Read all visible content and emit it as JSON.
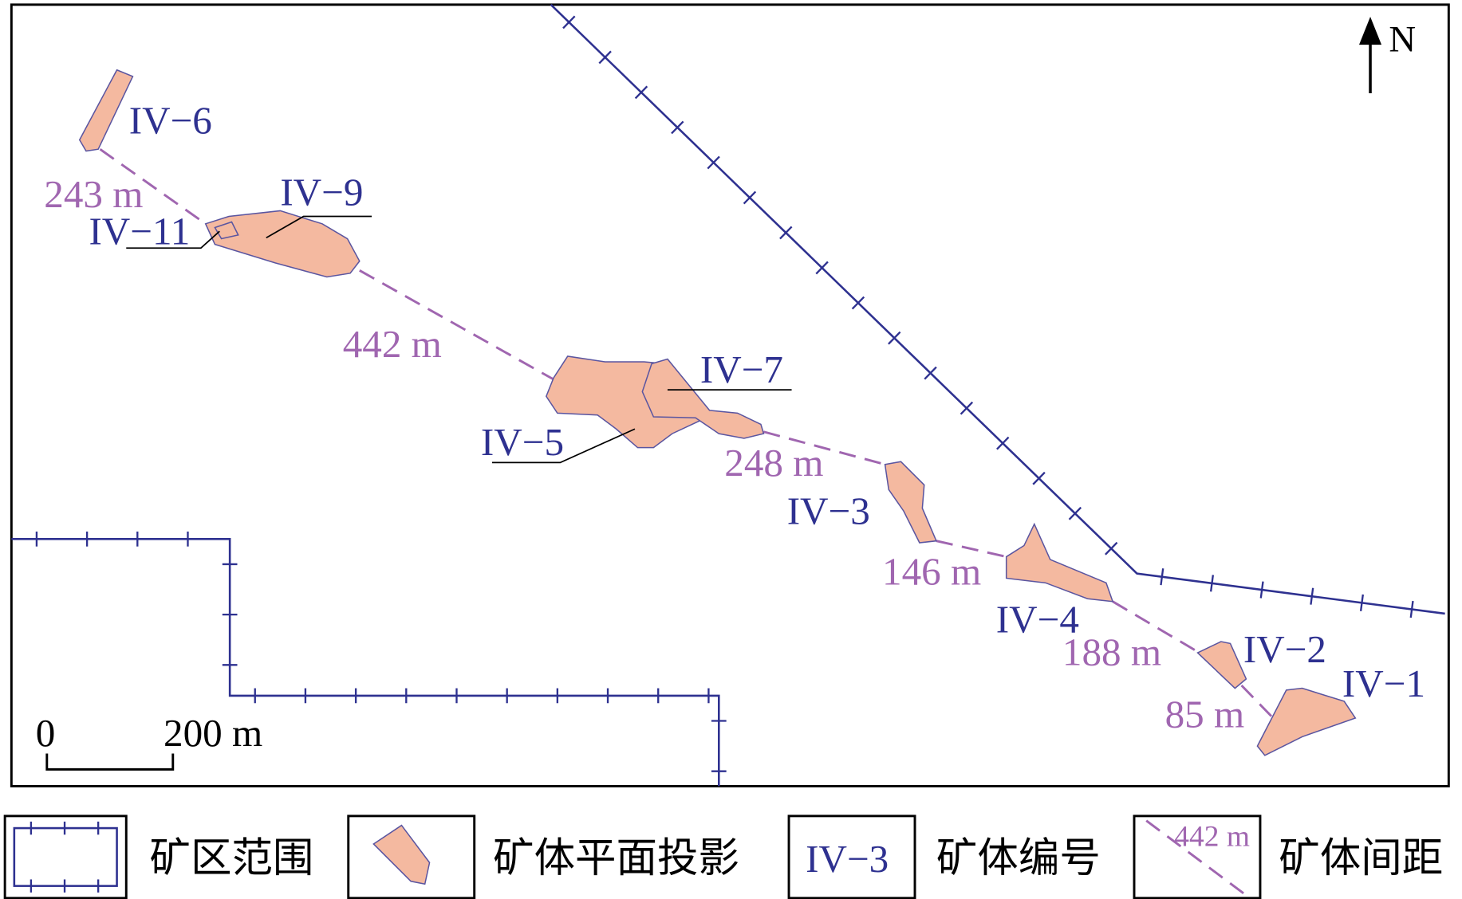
{
  "map": {
    "north": "N",
    "scale": {
      "start": "0",
      "end": "200 m"
    },
    "ore_bodies": [
      {
        "label": "IV−6"
      },
      {
        "label": "IV−9"
      },
      {
        "label": "IV−11"
      },
      {
        "label": "IV−7"
      },
      {
        "label": "IV−5"
      },
      {
        "label": "IV−3"
      },
      {
        "label": "IV−4"
      },
      {
        "label": "IV−2"
      },
      {
        "label": "IV−1"
      }
    ],
    "distances": [
      "243 m",
      "442 m",
      "248 m",
      "146 m",
      "188 m",
      "85 m"
    ],
    "legend": [
      {
        "label": "矿区范围"
      },
      {
        "label": "矿体平面投影"
      },
      {
        "label": "矿体编号",
        "sample": "IV−3"
      },
      {
        "label": "矿体间距",
        "sample": "442 m"
      }
    ]
  }
}
